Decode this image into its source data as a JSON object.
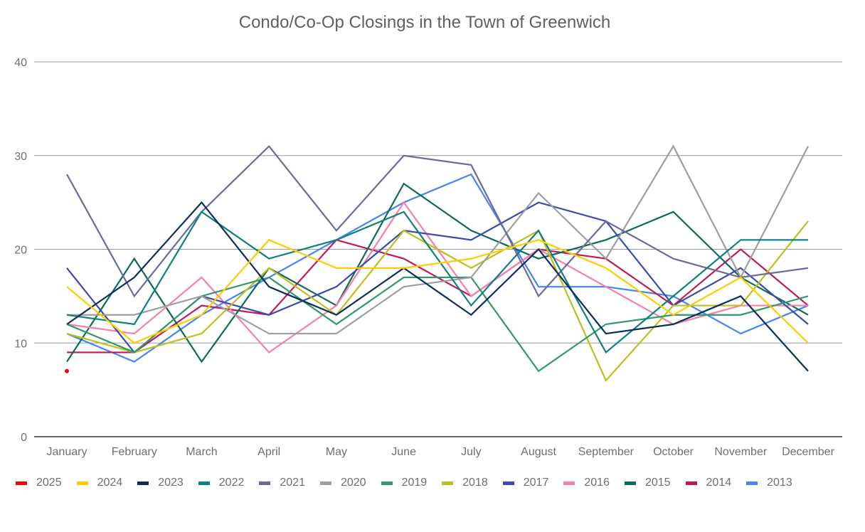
{
  "chart_data": {
    "type": "line",
    "title": "Condo/Co-Op Closings in the Town of Greenwich",
    "xlabel": "",
    "ylabel": "",
    "ylim": [
      0,
      40
    ],
    "yticks": [
      "0",
      "10",
      "20",
      "30",
      "40"
    ],
    "grid": true,
    "legend_position": "bottom",
    "categories": [
      "January",
      "February",
      "March",
      "April",
      "May",
      "June",
      "July",
      "August",
      "September",
      "October",
      "November",
      "December"
    ],
    "series": [
      {
        "name": "2025",
        "color": "#ff0000",
        "values": [
          7,
          null,
          null,
          null,
          null,
          null,
          null,
          null,
          null,
          null,
          null,
          null
        ]
      },
      {
        "name": "2024",
        "color": "#ffcc00",
        "values": [
          16,
          10,
          13,
          21,
          18,
          18,
          19,
          21,
          18,
          13,
          17,
          10
        ]
      },
      {
        "name": "2023",
        "color": "#0b2e5e",
        "values": [
          12,
          17,
          25,
          16,
          13,
          18,
          13,
          20,
          11,
          12,
          15,
          7
        ]
      },
      {
        "name": "2022",
        "color": "#0f7f7f",
        "values": [
          13,
          12,
          24,
          19,
          21,
          24,
          14,
          22,
          9,
          15,
          21,
          21
        ]
      },
      {
        "name": "2021",
        "color": "#6a6a9c",
        "values": [
          28,
          15,
          24,
          31,
          22,
          30,
          29,
          15,
          23,
          19,
          17,
          18
        ]
      },
      {
        "name": "2020",
        "color": "#9e9e9e",
        "values": [
          13,
          13,
          15,
          11,
          11,
          16,
          17,
          26,
          19,
          31,
          17,
          31
        ]
      },
      {
        "name": "2019",
        "color": "#2e9a68",
        "values": [
          12,
          9,
          15,
          17,
          12,
          17,
          17,
          7,
          12,
          13,
          13,
          15
        ]
      },
      {
        "name": "2018",
        "color": "#bfbf1c",
        "values": [
          11,
          9,
          11,
          18,
          13,
          22,
          18,
          22,
          6,
          14,
          14,
          23
        ]
      },
      {
        "name": "2017",
        "color": "#3a4aad",
        "values": [
          18,
          9,
          15,
          13,
          16,
          22,
          21,
          25,
          23,
          14,
          18,
          12
        ]
      },
      {
        "name": "2016",
        "color": "#f77fab",
        "values": [
          12,
          11,
          17,
          9,
          14,
          25,
          15,
          20,
          16,
          12,
          14,
          14
        ]
      },
      {
        "name": "2015",
        "color": "#0a6b5a",
        "values": [
          8,
          19,
          8,
          18,
          14,
          27,
          22,
          19,
          21,
          24,
          17,
          13
        ]
      },
      {
        "name": "2014",
        "color": "#c2185b",
        "values": [
          9,
          9,
          14,
          13,
          21,
          19,
          15,
          20,
          19,
          14,
          20,
          14
        ]
      },
      {
        "name": "2013",
        "color": "#4285f4",
        "values": [
          11,
          8,
          13,
          17,
          21,
          25,
          28,
          16,
          16,
          15,
          11,
          14
        ]
      }
    ]
  }
}
